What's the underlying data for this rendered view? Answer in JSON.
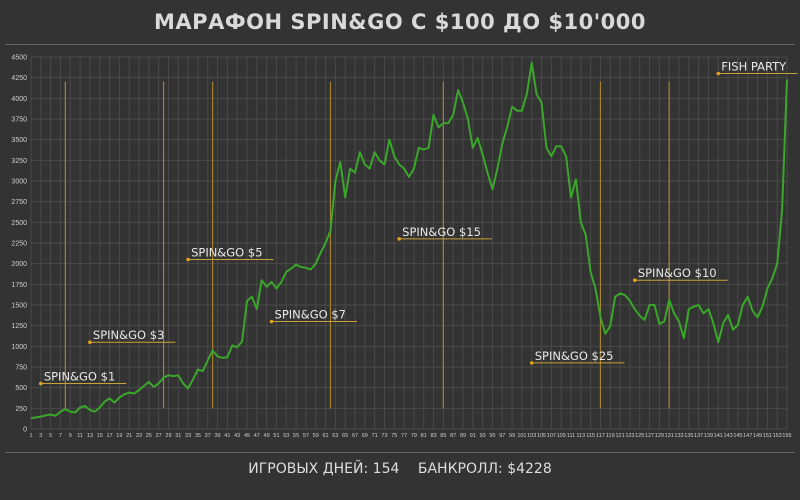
{
  "title": "МАРАФОН SPIN&GO С $100 ДО $10'000",
  "footer": {
    "days": "ИГРОВЫХ ДНЕЙ: 154",
    "bankroll": "БАНКРОЛЛ: $4228"
  },
  "colors": {
    "background": "#333333",
    "grid": "#4a4a4a",
    "line": "#3aa62a",
    "phase_line": "#b08a30",
    "annotation_underline": "#c6a23a",
    "annotation_dot": "#e2a21b"
  },
  "chart_data": {
    "type": "line",
    "title": "МАРАФОН SPIN&GO С $100 ДО $10'000",
    "xlabel": "",
    "ylabel": "",
    "xlim": [
      1,
      155
    ],
    "ylim": [
      0,
      4500
    ],
    "yticks": [
      0,
      250,
      500,
      750,
      1000,
      1250,
      1500,
      1750,
      2000,
      2250,
      2500,
      2750,
      3000,
      3250,
      3500,
      3750,
      4000,
      4250,
      4500
    ],
    "xtick_step": 2,
    "grid": true,
    "series": [
      {
        "points": [
          [
            1,
            130
          ],
          [
            2,
            140
          ],
          [
            3,
            150
          ],
          [
            4,
            165
          ],
          [
            5,
            175
          ],
          [
            6,
            160
          ],
          [
            7,
            210
          ],
          [
            8,
            240
          ],
          [
            9,
            210
          ],
          [
            10,
            200
          ],
          [
            11,
            260
          ],
          [
            12,
            280
          ],
          [
            13,
            230
          ],
          [
            14,
            210
          ],
          [
            15,
            260
          ],
          [
            16,
            330
          ],
          [
            17,
            370
          ],
          [
            18,
            320
          ],
          [
            19,
            380
          ],
          [
            20,
            420
          ],
          [
            21,
            440
          ],
          [
            22,
            430
          ],
          [
            23,
            470
          ],
          [
            24,
            520
          ],
          [
            25,
            570
          ],
          [
            26,
            510
          ],
          [
            27,
            550
          ],
          [
            28,
            620
          ],
          [
            29,
            650
          ],
          [
            30,
            640
          ],
          [
            31,
            650
          ],
          [
            32,
            550
          ],
          [
            33,
            490
          ],
          [
            34,
            600
          ],
          [
            35,
            720
          ],
          [
            36,
            700
          ],
          [
            37,
            830
          ],
          [
            38,
            950
          ],
          [
            39,
            880
          ],
          [
            40,
            860
          ],
          [
            41,
            870
          ],
          [
            42,
            1010
          ],
          [
            43,
            990
          ],
          [
            44,
            1060
          ],
          [
            45,
            1550
          ],
          [
            46,
            1600
          ],
          [
            47,
            1450
          ],
          [
            48,
            1800
          ],
          [
            49,
            1720
          ],
          [
            50,
            1780
          ],
          [
            51,
            1700
          ],
          [
            52,
            1780
          ],
          [
            53,
            1900
          ],
          [
            54,
            1940
          ],
          [
            55,
            1990
          ],
          [
            56,
            1960
          ],
          [
            57,
            1950
          ],
          [
            58,
            1930
          ],
          [
            59,
            2000
          ],
          [
            60,
            2130
          ],
          [
            61,
            2250
          ],
          [
            62,
            2400
          ],
          [
            63,
            3000
          ],
          [
            64,
            3230
          ],
          [
            65,
            2800
          ],
          [
            66,
            3150
          ],
          [
            67,
            3100
          ],
          [
            68,
            3350
          ],
          [
            69,
            3200
          ],
          [
            70,
            3150
          ],
          [
            71,
            3350
          ],
          [
            72,
            3250
          ],
          [
            73,
            3200
          ],
          [
            74,
            3500
          ],
          [
            75,
            3300
          ],
          [
            76,
            3200
          ],
          [
            77,
            3150
          ],
          [
            78,
            3050
          ],
          [
            79,
            3150
          ],
          [
            80,
            3400
          ],
          [
            81,
            3380
          ],
          [
            82,
            3400
          ],
          [
            83,
            3800
          ],
          [
            84,
            3650
          ],
          [
            85,
            3700
          ],
          [
            86,
            3700
          ],
          [
            87,
            3800
          ],
          [
            88,
            4100
          ],
          [
            89,
            3950
          ],
          [
            90,
            3750
          ],
          [
            91,
            3400
          ],
          [
            92,
            3520
          ],
          [
            93,
            3320
          ],
          [
            94,
            3100
          ],
          [
            95,
            2900
          ],
          [
            96,
            3150
          ],
          [
            97,
            3450
          ],
          [
            98,
            3650
          ],
          [
            99,
            3900
          ],
          [
            100,
            3850
          ],
          [
            101,
            3850
          ],
          [
            102,
            4050
          ],
          [
            103,
            4430
          ],
          [
            104,
            4050
          ],
          [
            105,
            3950
          ],
          [
            106,
            3400
          ],
          [
            107,
            3300
          ],
          [
            108,
            3420
          ],
          [
            109,
            3420
          ],
          [
            110,
            3300
          ],
          [
            111,
            2800
          ],
          [
            112,
            3020
          ],
          [
            113,
            2500
          ],
          [
            114,
            2350
          ],
          [
            115,
            1900
          ],
          [
            116,
            1700
          ],
          [
            117,
            1350
          ],
          [
            118,
            1150
          ],
          [
            119,
            1250
          ],
          [
            120,
            1600
          ],
          [
            121,
            1640
          ],
          [
            122,
            1620
          ],
          [
            123,
            1550
          ],
          [
            124,
            1450
          ],
          [
            125,
            1370
          ],
          [
            126,
            1320
          ],
          [
            127,
            1500
          ],
          [
            128,
            1500
          ],
          [
            129,
            1270
          ],
          [
            130,
            1300
          ],
          [
            131,
            1560
          ],
          [
            132,
            1400
          ],
          [
            133,
            1300
          ],
          [
            134,
            1100
          ],
          [
            135,
            1450
          ],
          [
            136,
            1480
          ],
          [
            137,
            1500
          ],
          [
            138,
            1400
          ],
          [
            139,
            1450
          ],
          [
            140,
            1280
          ],
          [
            141,
            1050
          ],
          [
            142,
            1280
          ],
          [
            143,
            1380
          ],
          [
            144,
            1200
          ],
          [
            145,
            1260
          ],
          [
            146,
            1500
          ],
          [
            147,
            1600
          ],
          [
            148,
            1430
          ],
          [
            149,
            1350
          ],
          [
            150,
            1480
          ],
          [
            151,
            1700
          ],
          [
            152,
            1820
          ],
          [
            153,
            2000
          ],
          [
            154,
            2650
          ],
          [
            155,
            4228
          ]
        ]
      }
    ],
    "phase_markers": [
      8,
      28,
      38,
      62,
      85,
      117,
      131
    ],
    "annotations": [
      {
        "label": "SPIN&GO $1",
        "x": 3,
        "y": 550
      },
      {
        "label": "SPIN&GO $3",
        "x": 13,
        "y": 1050
      },
      {
        "label": "SPIN&GO $5",
        "x": 33,
        "y": 2050
      },
      {
        "label": "SPIN&GO $7",
        "x": 50,
        "y": 1300
      },
      {
        "label": "SPIN&GO $15",
        "x": 76,
        "y": 2300
      },
      {
        "label": "SPIN&GO $25",
        "x": 103,
        "y": 800
      },
      {
        "label": "SPIN&GO $10",
        "x": 124,
        "y": 1800
      },
      {
        "label": "FISH PARTY",
        "x": 141,
        "y": 4300
      }
    ]
  }
}
